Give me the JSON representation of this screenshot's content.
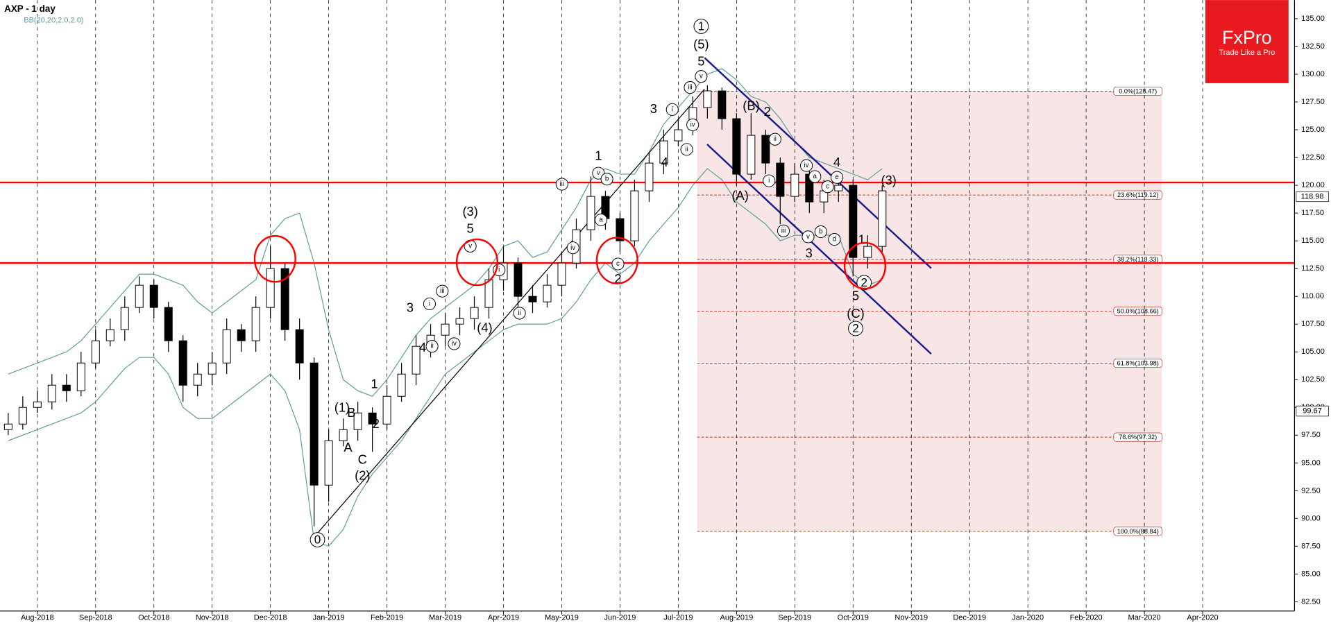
{
  "chart_data": {
    "type": "candlestick",
    "title": "AXP - 1 day",
    "subtitle": "BB(20,20,2.0,2.0)",
    "logo": {
      "name": "FxPro",
      "tagline": "Trade Like a Pro"
    },
    "categories": [
      null,
      null,
      "Aug-2018",
      null,
      null,
      null,
      "Sep-2018",
      null,
      null,
      null,
      "Oct-2018",
      null,
      null,
      null,
      "Nov-2018",
      null,
      null,
      null,
      "Dec-2018",
      null,
      null,
      null,
      "Jan-2019",
      null,
      null,
      null,
      "Feb-2019",
      null,
      null,
      null,
      "Mar-2019",
      null,
      null,
      null,
      "Apr-2019",
      null,
      null,
      null,
      "May-2019",
      null,
      null,
      null,
      "Jun-2019",
      null,
      null,
      null,
      "Jul-2019",
      null,
      null,
      null,
      "Aug-2019",
      null,
      null,
      null,
      "Sep-2019",
      null,
      null,
      null,
      "Oct-2019",
      null,
      null,
      null,
      "Nov-2019",
      null,
      null,
      null,
      "Dec-2019",
      null,
      null,
      null,
      "Jan-2020",
      null,
      null,
      null,
      "Feb-2020",
      null,
      null,
      null,
      "Mar-2020",
      null,
      null,
      null,
      "Apr-2020",
      null,
      null,
      null
    ],
    "open": [
      98,
      98.5,
      100,
      100.5,
      102,
      101.5,
      104,
      106,
      107,
      109,
      111,
      109,
      106,
      102,
      103,
      104,
      107,
      106,
      109,
      112.5,
      107,
      104,
      93,
      97,
      98,
      99.5,
      98.5,
      101,
      103,
      105.5,
      106.5,
      107.5,
      108,
      109,
      111.5,
      113,
      110,
      109.5,
      111,
      113,
      116,
      119,
      117,
      115,
      119.5,
      122,
      124,
      125,
      127,
      128.5,
      126,
      121,
      124.5,
      122,
      119,
      121,
      118.5,
      119.5,
      120,
      113.5,
      114.5,
      null,
      null,
      null,
      null,
      null,
      null,
      null,
      null,
      null,
      null,
      null,
      null,
      null,
      null,
      null,
      null,
      null,
      null,
      null,
      null,
      null,
      null,
      null,
      null,
      null
    ],
    "high": [
      99.5,
      101,
      101.5,
      103,
      103,
      105,
      107,
      108,
      110,
      111.8,
      111.5,
      109.5,
      106.5,
      104,
      105,
      108,
      107.5,
      110,
      114.5,
      113,
      108,
      104.5,
      98,
      99,
      100.5,
      100,
      102,
      104,
      106.5,
      107.5,
      108.5,
      109,
      110,
      112.5,
      114.5,
      113.5,
      111,
      112,
      114,
      117,
      120.8,
      119.5,
      117.5,
      120.5,
      123,
      125,
      126,
      128,
      129,
      128.8,
      126.5,
      126.5,
      125,
      122.5,
      122,
      121.5,
      120.5,
      121,
      120.5,
      115.5,
      120,
      null,
      null,
      null,
      null,
      null,
      null,
      null,
      null,
      null,
      null,
      null,
      null,
      null,
      null,
      null,
      null,
      null,
      null,
      null,
      null,
      null,
      null,
      null,
      null,
      null
    ],
    "low": [
      97.5,
      98,
      99.5,
      99.8,
      100.5,
      101,
      103.5,
      105.5,
      106,
      108.5,
      108,
      105,
      100.5,
      101,
      102,
      103,
      105,
      105,
      108,
      106,
      102.5,
      89.3,
      91.5,
      96.5,
      97,
      96,
      98,
      100.5,
      102,
      104.5,
      105.5,
      106.5,
      107,
      108,
      110.5,
      109,
      108.5,
      109,
      110,
      112.5,
      115,
      116,
      114,
      114.5,
      118.5,
      121,
      123.5,
      124.5,
      126,
      125,
      120,
      120.5,
      121,
      116.5,
      118.5,
      117.5,
      117.5,
      118.5,
      111.8,
      112.5,
      114,
      null,
      null,
      null,
      null,
      null,
      null,
      null,
      null,
      null,
      null,
      null,
      null,
      null,
      null,
      null,
      null,
      null,
      null,
      null,
      null,
      null,
      null,
      null,
      null,
      null
    ],
    "close": [
      98.5,
      100,
      100.5,
      102,
      101.5,
      104,
      106,
      107,
      109,
      111,
      109,
      106,
      102,
      103,
      104,
      107,
      106,
      109,
      112.5,
      107,
      104,
      93,
      97,
      98,
      99.5,
      98.5,
      101,
      103,
      105.5,
      106.5,
      107.5,
      108,
      109,
      111.5,
      113,
      110,
      109.5,
      111,
      113,
      116,
      119,
      117,
      115,
      119.5,
      122,
      124,
      125,
      127,
      128.5,
      126,
      121,
      124.5,
      122,
      119,
      121,
      118.5,
      119.5,
      120,
      113.5,
      114.5,
      119.5,
      null,
      null,
      null,
      null,
      null,
      null,
      null,
      null,
      null,
      null,
      null,
      null,
      null,
      null,
      null,
      null,
      null,
      null,
      null,
      null,
      null,
      null,
      null,
      null,
      null
    ],
    "bands": {
      "color": "#5f9ea0",
      "upper": [
        103,
        103.5,
        104,
        104.5,
        105,
        106,
        107.5,
        109,
        110.5,
        112,
        112,
        111.5,
        111,
        109.5,
        108.5,
        109.5,
        110.5,
        111.5,
        115.5,
        117,
        117.5,
        113,
        107,
        102.5,
        101.5,
        101,
        102.5,
        104.5,
        106.5,
        108,
        109,
        110,
        111,
        112.5,
        114.5,
        115,
        113.5,
        114,
        116,
        118,
        120.5,
        121.5,
        121,
        121,
        123,
        125.5,
        127,
        128.5,
        130,
        130.5,
        129.5,
        128,
        127.5,
        126,
        124,
        122.5,
        122,
        121.5,
        121,
        120.5,
        121.5,
        null,
        null,
        null,
        null,
        null,
        null,
        null,
        null,
        null,
        null,
        null,
        null,
        null,
        null,
        null,
        null,
        null,
        null,
        null,
        null,
        null,
        null,
        null,
        null,
        null
      ],
      "lower": [
        97,
        97.5,
        98,
        98.5,
        99,
        99.5,
        100.5,
        102,
        103.5,
        104.5,
        104.5,
        103,
        100,
        99,
        99,
        100,
        101,
        102,
        103,
        101.5,
        98,
        88,
        87.5,
        89,
        92,
        94,
        95.5,
        97,
        99,
        101,
        103,
        104,
        105,
        106,
        107,
        107.5,
        107.5,
        107.5,
        108,
        109.5,
        111.5,
        113,
        112,
        113,
        115,
        116.5,
        118,
        120,
        121.5,
        120.5,
        118.5,
        117.5,
        116.5,
        115,
        115.5,
        115.5,
        115.5,
        115.5,
        112,
        111,
        111.5,
        null,
        null,
        null,
        null,
        null,
        null,
        null,
        null,
        null,
        null,
        null,
        null,
        null,
        null,
        null,
        null,
        null,
        null,
        null,
        null,
        null,
        null,
        null,
        null,
        null
      ]
    },
    "ylim": [
      81.66,
      136.68
    ],
    "yticks": [
      {
        "value": 82.5,
        "label": "82.50"
      },
      {
        "value": 85,
        "label": "85.00"
      },
      {
        "value": 87.5,
        "label": "87.50"
      },
      {
        "value": 90,
        "label": "90.00"
      },
      {
        "value": 92.5,
        "label": "92.50"
      },
      {
        "value": 95,
        "label": "95.00"
      },
      {
        "value": 97.5,
        "label": "97.50"
      },
      {
        "value": 100,
        "label": "100.00"
      },
      {
        "value": 102.5,
        "label": "102.50"
      },
      {
        "value": 105,
        "label": "105.00"
      },
      {
        "value": 107.5,
        "label": "107.50"
      },
      {
        "value": 110,
        "label": "110.00"
      },
      {
        "value": 112.5,
        "label": "112.50"
      },
      {
        "value": 115,
        "label": "115.00"
      },
      {
        "value": 117.5,
        "label": "117.50"
      },
      {
        "value": 120,
        "label": "120.00"
      },
      {
        "value": 122.5,
        "label": "122.50"
      },
      {
        "value": 125,
        "label": "125.00"
      },
      {
        "value": 127.5,
        "label": "127.50"
      },
      {
        "value": 130,
        "label": "130.00"
      },
      {
        "value": 132.5,
        "label": "132.50"
      },
      {
        "value": 135,
        "label": "135.00"
      }
    ],
    "price_markers": [
      118.98,
      99.67
    ],
    "hlines": [
      120.25,
      113
    ],
    "hline_color": "#ff0000",
    "fib_levels": [
      {
        "value": 128.47,
        "label": "0.0%(128.47)"
      },
      {
        "value": 119.12,
        "label": "23.6%(119.12)"
      },
      {
        "value": 113.33,
        "label": "38.2%(113.33)"
      },
      {
        "value": 108.66,
        "label": "50.0%(108.66)"
      },
      {
        "value": 103.98,
        "label": "61.8%(103.98)"
      },
      {
        "value": 97.32,
        "label": "78.6%(97.32)"
      },
      {
        "value": 88.84,
        "label": "100.0%(88.84)"
      }
    ],
    "annotations": [
      {
        "text": "1",
        "circled": true
      },
      {
        "text": "(5)",
        "circled": false
      },
      {
        "text": "5",
        "circled": false
      },
      {
        "text": "v",
        "circled": true
      },
      {
        "text": "iii",
        "circled": true
      },
      {
        "text": "i",
        "circled": true
      },
      {
        "text": "3",
        "circled": false
      },
      {
        "text": "iv",
        "circled": true
      },
      {
        "text": "ii",
        "circled": true
      },
      {
        "text": "4",
        "circled": false
      },
      {
        "text": "1",
        "circled": false
      },
      {
        "text": "v",
        "circled": true
      },
      {
        "text": "b",
        "circled": true
      },
      {
        "text": "iii",
        "circled": true
      },
      {
        "text": "a",
        "circled": true
      },
      {
        "text": "iv",
        "circled": true
      },
      {
        "text": "c",
        "circled": true
      },
      {
        "text": "2",
        "circled": false
      },
      {
        "text": "(3)",
        "circled": false
      },
      {
        "text": "5",
        "circled": false
      },
      {
        "text": "v",
        "circled": true
      },
      {
        "text": "i",
        "circled": true
      },
      {
        "text": "ii",
        "circled": true
      },
      {
        "text": "(4)",
        "circled": false
      },
      {
        "text": "3",
        "circled": false
      },
      {
        "text": "i",
        "circled": true
      },
      {
        "text": "iii",
        "circled": true
      },
      {
        "text": "4",
        "circled": false
      },
      {
        "text": "ii",
        "circled": true
      },
      {
        "text": "iv",
        "circled": true
      },
      {
        "text": "1",
        "circled": false
      },
      {
        "text": "(1)",
        "circled": false
      },
      {
        "text": "B",
        "circled": false
      },
      {
        "text": "2",
        "circled": false
      },
      {
        "text": "A",
        "circled": false
      },
      {
        "text": "C",
        "circled": false
      },
      {
        "text": "(2)",
        "circled": false
      },
      {
        "text": "0",
        "circled": true
      },
      {
        "text": "(B)",
        "circled": false
      },
      {
        "text": "2",
        "circled": false
      },
      {
        "text": "ii",
        "circled": true
      },
      {
        "text": "i",
        "circled": true
      },
      {
        "text": "(A)",
        "circled": false
      },
      {
        "text": "iii",
        "circled": true
      },
      {
        "text": "iv",
        "circled": true
      },
      {
        "text": "a",
        "circled": true
      },
      {
        "text": "c",
        "circled": true
      },
      {
        "text": "4",
        "circled": false
      },
      {
        "text": "e",
        "circled": true
      },
      {
        "text": "v",
        "circled": true
      },
      {
        "text": "b",
        "circled": true
      },
      {
        "text": "3",
        "circled": false
      },
      {
        "text": "d",
        "circled": true
      },
      {
        "text": "(3)",
        "circled": false
      },
      {
        "text": "1",
        "circled": false
      },
      {
        "text": "2",
        "circled": true
      },
      {
        "text": "5",
        "circled": false
      },
      {
        "text": "(C)",
        "circled": false
      },
      {
        "text": "2",
        "circled": true
      }
    ]
  }
}
